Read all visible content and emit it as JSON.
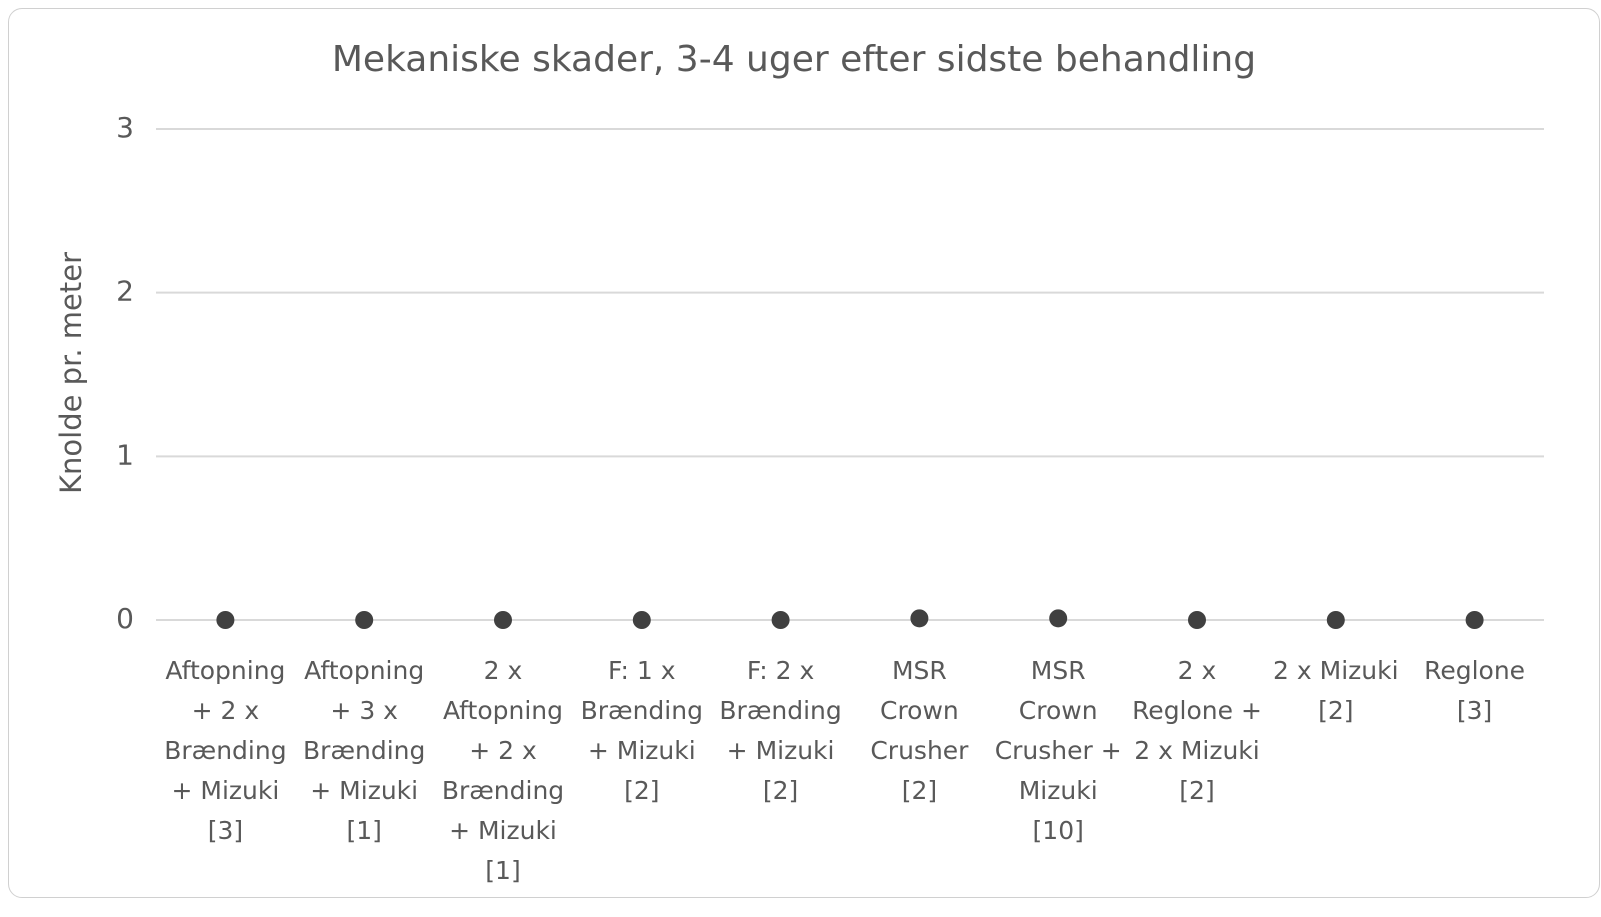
{
  "chart_data": {
    "type": "scatter",
    "title": "Mekaniske skader, 3-4 uger efter sidste behandling",
    "y_label": "Knolde pr. meter",
    "categories": [
      "Aftopning + 2 x Brænding + Mizuki [3]",
      "Aftopning + 3 x Brænding + Mizuki [1]",
      "2 x Aftopning + 2 x Brænding + Mizuki [1]",
      "F: 1 x Brænding + Mizuki [2]",
      "F: 2 x Brænding + Mizuki [2]",
      "MSR Crown Crusher [2]",
      "MSR Crown Crusher + Mizuki [10]",
      "2 x Reglone + 2 x Mizuki [2]",
      "2 x Mizuki [2]",
      "Reglone [3]"
    ],
    "values": [
      0,
      0,
      0,
      0,
      0,
      0.01,
      0.01,
      0,
      0,
      0
    ],
    "color": "#404040",
    "ylim": [
      0,
      3
    ],
    "yticks": [
      0,
      1,
      2,
      3
    ],
    "grid": true
  }
}
